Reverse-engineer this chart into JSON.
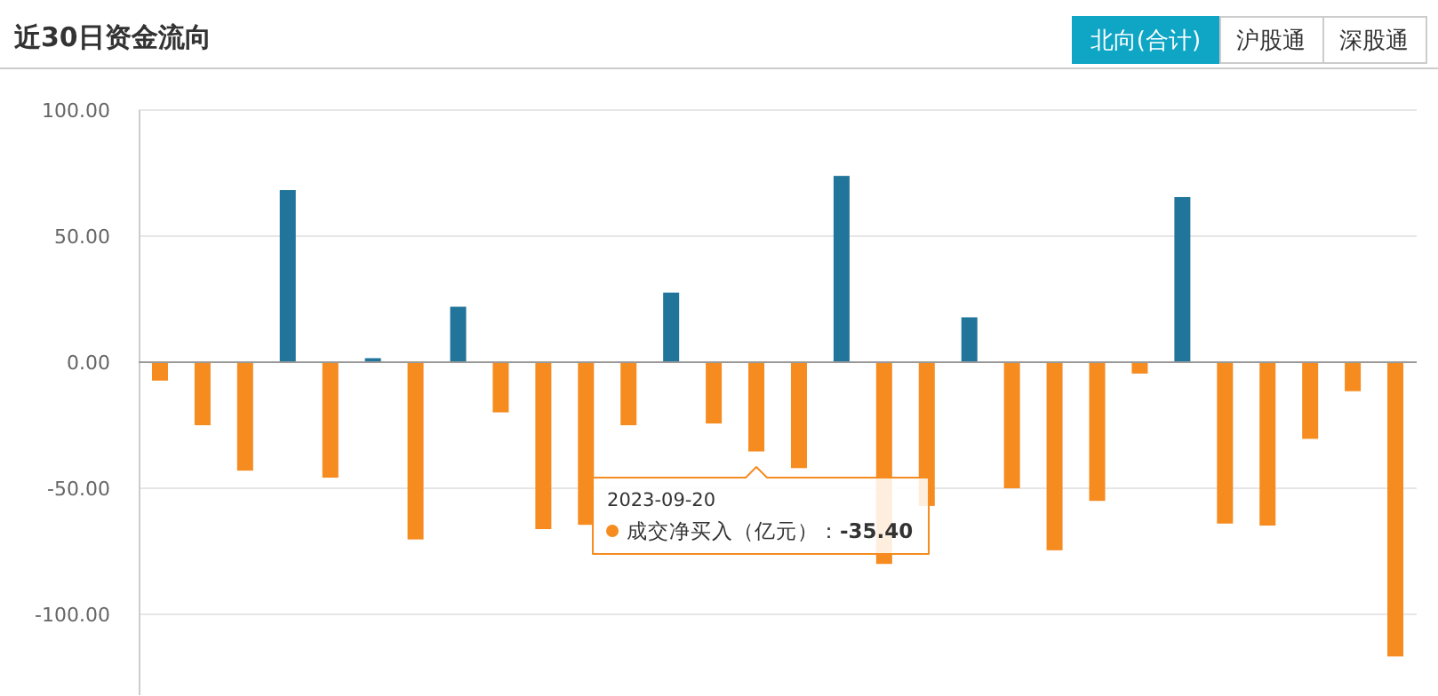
{
  "chart_data": {
    "type": "bar",
    "title": "近30日资金流向",
    "categories": [
      null,
      null,
      null,
      null,
      null,
      null,
      null,
      null,
      null,
      null,
      null,
      null,
      null,
      null,
      null,
      null,
      null,
      null,
      null,
      null,
      null,
      null,
      null,
      null,
      null,
      null,
      null,
      null,
      null,
      null
    ],
    "values": [
      -7.3,
      -25,
      -43,
      68.3,
      -45.8,
      1.6,
      -70.3,
      22,
      -19.9,
      -66.2,
      -64.5,
      -25,
      27.6,
      -24.3,
      -35.4,
      -42,
      73.9,
      -80,
      -57,
      17.8,
      -50,
      -74.6,
      -55,
      -4.5,
      65.5,
      -64,
      -64.8,
      -30.4,
      -11.5,
      -116.7
    ],
    "colors": [
      "#f68b1f",
      "#f68b1f",
      "#f68b1f",
      "#21759b",
      "#f68b1f",
      "#21759b",
      "#f68b1f",
      "#21759b",
      "#f68b1f",
      "#f68b1f",
      "#f68b1f",
      "#f68b1f",
      "#21759b",
      "#f68b1f",
      "#f68b1f",
      "#f68b1f",
      "#21759b",
      "#f68b1f",
      "#f68b1f",
      "#21759b",
      "#f68b1f",
      "#f68b1f",
      "#f68b1f",
      "#f68b1f",
      "#21759b",
      "#f68b1f",
      "#f68b1f",
      "#f68b1f",
      "#f68b1f",
      "#f68b1f"
    ],
    "ylim": [
      -132,
      100
    ],
    "yticks": [
      {
        "value": -100,
        "label": "-100.00"
      },
      {
        "value": -50,
        "label": "-50.00"
      },
      {
        "value": 0,
        "label": "0.00"
      },
      {
        "value": 50,
        "label": "50.00"
      },
      {
        "value": 100,
        "label": "100.00"
      }
    ],
    "grid": "y",
    "annotations": [
      "北向(合计)",
      "沪股通",
      "深股通",
      "2023-09-20",
      "成交净买入（亿元）：**-35.40**"
    ]
  }
}
